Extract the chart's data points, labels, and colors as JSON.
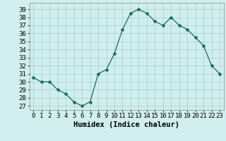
{
  "x": [
    0,
    1,
    2,
    3,
    4,
    5,
    6,
    7,
    8,
    9,
    10,
    11,
    12,
    13,
    14,
    15,
    16,
    17,
    18,
    19,
    20,
    21,
    22,
    23
  ],
  "y": [
    30.5,
    30.0,
    30.0,
    29.0,
    28.5,
    27.5,
    27.0,
    27.5,
    31.0,
    31.5,
    33.5,
    36.5,
    38.5,
    39.0,
    38.5,
    37.5,
    37.0,
    38.0,
    37.0,
    36.5,
    35.5,
    34.5,
    32.0,
    31.0
  ],
  "line_color": "#1a6b5a",
  "marker": "*",
  "marker_size": 3,
  "bg_color": "#d0eeee",
  "grid_color": "#aacccc",
  "xlabel": "Humidex (Indice chaleur)",
  "ylabel_ticks": [
    27,
    28,
    29,
    30,
    31,
    32,
    33,
    34,
    35,
    36,
    37,
    38,
    39
  ],
  "ylim": [
    26.5,
    39.8
  ],
  "xlim": [
    -0.5,
    23.5
  ],
  "tick_fontsize": 6.5,
  "xlabel_fontsize": 7.5
}
